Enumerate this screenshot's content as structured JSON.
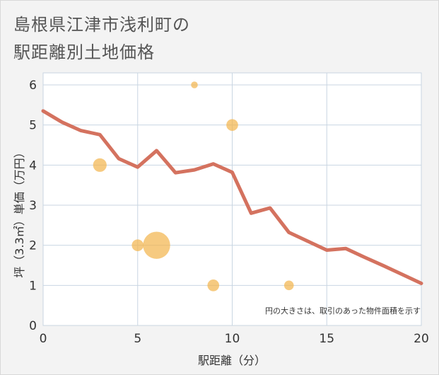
{
  "title_lines": [
    "島根県江津市浅利町の",
    "駅距離別土地価格"
  ],
  "chart_data": {
    "type": "line+bubble",
    "title": "島根県江津市浅利町の駅距離別土地価格",
    "xlabel": "駅距離（分）",
    "ylabel": "坪（3.3㎡）単価（万円）",
    "xlim": [
      0,
      20
    ],
    "ylim": [
      0,
      6.3
    ],
    "xticks": [
      "0",
      "5",
      "10",
      "15",
      "20"
    ],
    "yticks": [
      "0",
      "1",
      "2",
      "3",
      "4",
      "5",
      "6"
    ],
    "grid": true,
    "annotation": "円の大きさは、取引のあった物件面積を示す",
    "line": {
      "color": "#d4725f",
      "x": [
        0,
        1,
        2,
        3,
        4,
        5,
        6,
        7,
        8,
        9,
        10,
        11,
        12,
        13,
        14,
        15,
        16,
        17,
        18,
        19,
        20
      ],
      "y": [
        5.35,
        5.07,
        4.86,
        4.76,
        4.16,
        3.95,
        4.36,
        3.81,
        3.88,
        4.03,
        3.82,
        2.8,
        2.93,
        2.32,
        2.1,
        1.88,
        1.92,
        1.7,
        1.49,
        1.27,
        1.05
      ]
    },
    "bubbles": {
      "color": "#f2b54f",
      "x": [
        8,
        10,
        3,
        5,
        6,
        9,
        13
      ],
      "y": [
        6.0,
        5.0,
        4.0,
        2.0,
        2.0,
        1.0,
        1.0
      ],
      "size": [
        1,
        3,
        4,
        3,
        16,
        3,
        2
      ]
    }
  }
}
